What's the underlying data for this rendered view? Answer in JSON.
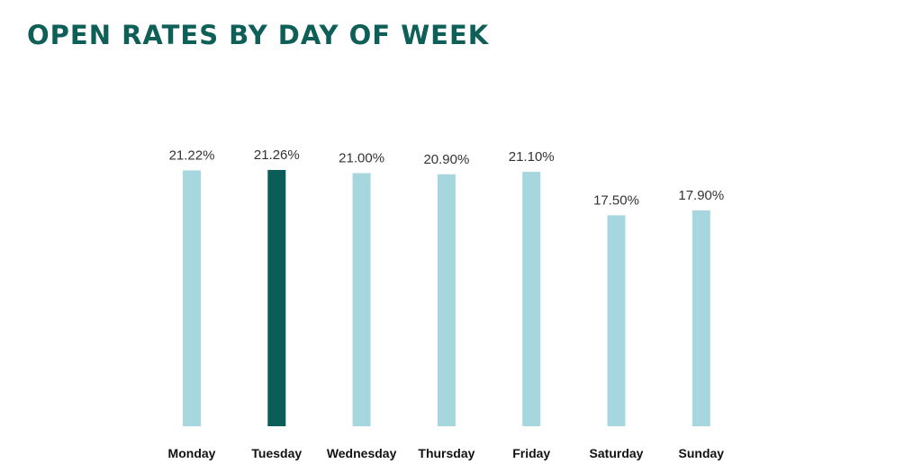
{
  "title": "OPEN RATES BY DAY OF WEEK",
  "colors": {
    "title": "#0e5f58",
    "bar_default": "#a6d7de",
    "bar_highlight": "#0b5e57"
  },
  "chart_data": {
    "type": "bar",
    "title": "OPEN RATES BY DAY OF WEEK",
    "xlabel": "",
    "ylabel": "",
    "categories": [
      "Monday",
      "Tuesday",
      "Wednesday",
      "Thursday",
      "Friday",
      "Saturday",
      "Sunday"
    ],
    "values": [
      21.22,
      21.26,
      21.0,
      20.9,
      21.1,
      17.5,
      17.9
    ],
    "value_labels": [
      "21.22%",
      "21.26%",
      "21.00%",
      "20.90%",
      "21.10%",
      "17.50%",
      "17.90%"
    ],
    "highlight": "Tuesday",
    "ylim": [
      0,
      21.26
    ],
    "grid": false,
    "legend": "none"
  }
}
